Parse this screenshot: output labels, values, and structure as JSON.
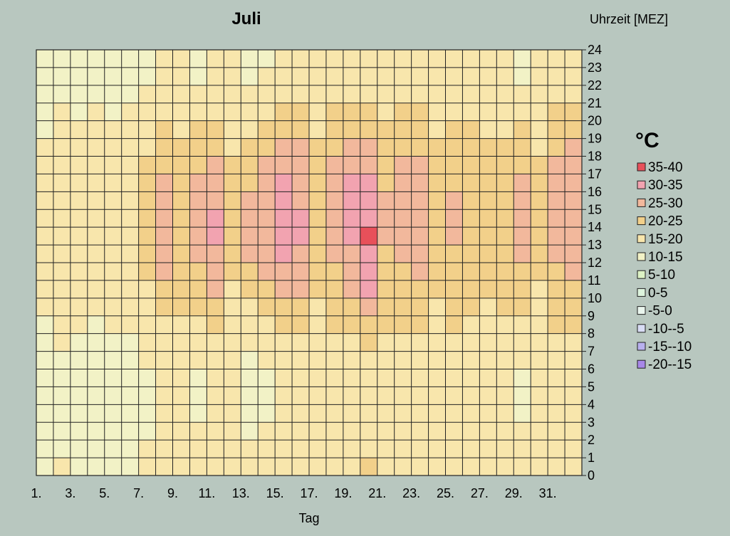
{
  "chart_data": {
    "type": "heatmap",
    "title": "Juli",
    "xlabel": "Tag",
    "ylabel": "Uhrzeit [MEZ]",
    "legend_title": "°C",
    "legend_placement": "right",
    "grid": true,
    "x_ticks": [
      "1.",
      "3.",
      "5.",
      "7.",
      "9.",
      "11.",
      "13.",
      "15.",
      "17.",
      "19.",
      "21.",
      "23.",
      "25.",
      "27.",
      "29.",
      "31."
    ],
    "y_ticks": [
      0,
      1,
      2,
      3,
      4,
      5,
      6,
      7,
      8,
      9,
      10,
      11,
      12,
      13,
      14,
      15,
      16,
      17,
      18,
      19,
      20,
      21,
      22,
      23,
      24
    ],
    "days": [
      1,
      2,
      3,
      4,
      5,
      6,
      7,
      8,
      9,
      10,
      11,
      12,
      13,
      14,
      15,
      16,
      17,
      18,
      19,
      20,
      21,
      22,
      23,
      24,
      25,
      26,
      27,
      28,
      29,
      30,
      31,
      32
    ],
    "hours": [
      0,
      1,
      2,
      3,
      4,
      5,
      6,
      7,
      8,
      9,
      10,
      11,
      12,
      13,
      14,
      15,
      16,
      17,
      18,
      19,
      20,
      21,
      22,
      23,
      24
    ],
    "bins": [
      {
        "label": "35-40",
        "min": 35,
        "max": 40,
        "color": "#e8505a"
      },
      {
        "label": "30-35",
        "min": 30,
        "max": 35,
        "color": "#f2a3b0"
      },
      {
        "label": "25-30",
        "min": 25,
        "max": 30,
        "color": "#f2b89c"
      },
      {
        "label": "20-25",
        "min": 20,
        "max": 25,
        "color": "#f2d08a"
      },
      {
        "label": "15-20",
        "min": 15,
        "max": 20,
        "color": "#f8e6ac"
      },
      {
        "label": "10-15",
        "min": 10,
        "max": 15,
        "color": "#f2f2c6"
      },
      {
        "label": "5-10",
        "min": 5,
        "max": 10,
        "color": "#dcf2c4"
      },
      {
        "label": "0-5",
        "min": 0,
        "max": 5,
        "color": "#ddf4dd"
      },
      {
        "label": "-5-0",
        "min": -5,
        "max": 0,
        "color": "#eaf6ee"
      },
      {
        "label": "-10--5",
        "min": -10,
        "max": -5,
        "color": "#d8dcf4"
      },
      {
        "label": "-15--10",
        "min": -15,
        "max": -10,
        "color": "#b8b0ee"
      },
      {
        "label": "-20--15",
        "min": -20,
        "max": -15,
        "color": "#a888e8"
      }
    ],
    "daily_profile": {
      "min_temp": [
        13,
        14,
        13,
        13,
        13,
        13,
        14,
        15,
        16,
        14,
        15,
        15,
        13,
        14,
        16,
        16,
        16,
        17,
        16,
        16,
        17,
        17,
        17,
        16,
        17,
        18,
        17,
        16,
        14,
        15,
        17,
        17
      ],
      "max_temp": [
        17,
        19,
        19,
        19,
        19,
        20,
        23,
        28,
        24,
        27,
        31,
        22,
        27,
        30,
        33,
        31,
        23,
        28,
        32,
        36,
        26,
        28,
        28,
        23,
        26,
        23,
        22,
        24,
        27,
        22,
        27,
        29
      ],
      "peak_hour": [
        15,
        15,
        15,
        16,
        15,
        15,
        15,
        15,
        15,
        15,
        15,
        15,
        15,
        15,
        15,
        15,
        15,
        16,
        16,
        14,
        15,
        16,
        15,
        15,
        15,
        15,
        15,
        15,
        15,
        15,
        16,
        16
      ],
      "min_hour": [
        4,
        4,
        4,
        4,
        4,
        4,
        4,
        4,
        4,
        4,
        4,
        4,
        4,
        4,
        4,
        4,
        4,
        4,
        4,
        4,
        4,
        4,
        4,
        4,
        4,
        4,
        4,
        4,
        4,
        4,
        4,
        4
      ]
    }
  }
}
